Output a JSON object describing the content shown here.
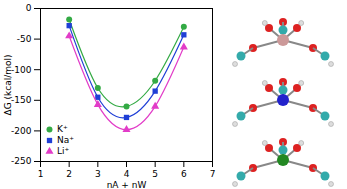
{
  "chart_data": {
    "type": "line",
    "x_label": "nA + nW",
    "y_label": "ΔG (kcal/mol)",
    "x": [
      2,
      3,
      4,
      5,
      6
    ],
    "series": [
      {
        "name": "K⁺",
        "color": "#33aa44",
        "marker": "circle",
        "values": [
          -18,
          -130,
          -160,
          -118,
          -30
        ]
      },
      {
        "name": "Na⁺",
        "color": "#1f3fd6",
        "marker": "square",
        "values": [
          -28,
          -145,
          -178,
          -135,
          -43
        ]
      },
      {
        "name": "Li⁺",
        "color": "#e23cc8",
        "marker": "triangle",
        "values": [
          -45,
          -157,
          -198,
          -160,
          -63
        ]
      }
    ],
    "xlim": [
      1,
      7
    ],
    "xticks": [
      1,
      2,
      3,
      4,
      5,
      6,
      7
    ],
    "ylim": [
      -250,
      0
    ],
    "yticks": [
      -250,
      -200,
      -150,
      -100,
      -50,
      0
    ],
    "line_style": "solid",
    "legend": "bottom-left",
    "grid": false
  }
}
